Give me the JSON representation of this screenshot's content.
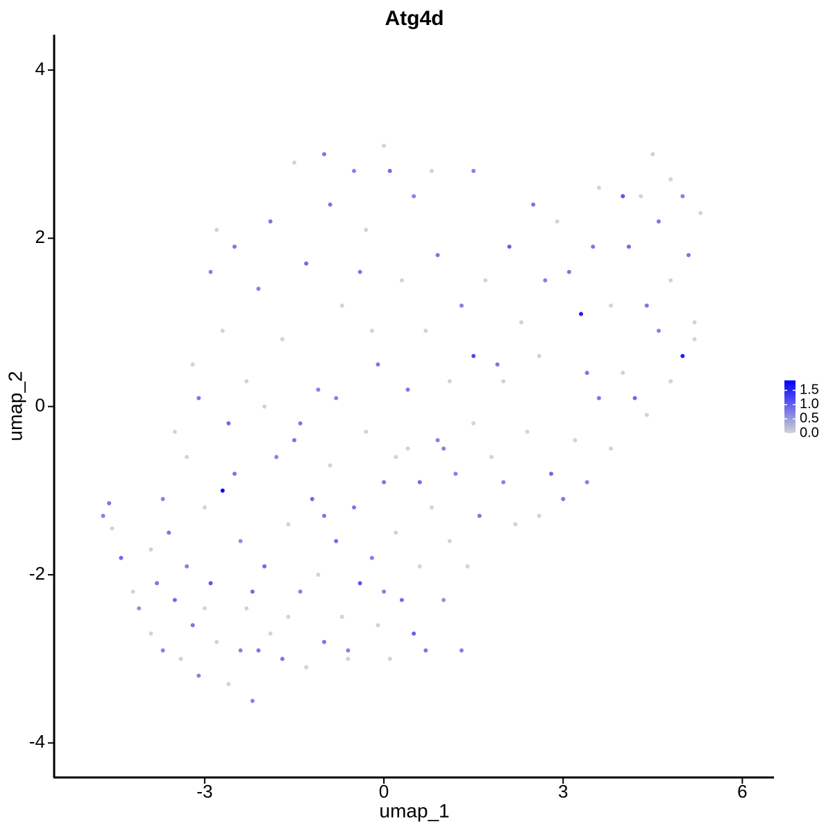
{
  "chart_data": {
    "type": "scatter",
    "title": "Atg4d",
    "x_label": "umap_1",
    "y_label": "umap_2",
    "xlim": [
      -5.52,
      6.53
    ],
    "ylim": [
      -4.41,
      4.42
    ],
    "xticks": [
      -3,
      0,
      3,
      6
    ],
    "yticks": [
      -4,
      -2,
      0,
      2,
      4
    ],
    "color_scale": {
      "low": "#d3d3d3",
      "high": "#0000ff",
      "lim": [
        0,
        1.85
      ],
      "ticks": [
        {
          "value": 0,
          "label": "0.0"
        },
        0.5,
        {
          "value": 1,
          "label": "1.0"
        },
        1.5
      ]
    },
    "x": [
      -4.7,
      -4.6,
      -4.55,
      -4.4,
      -4.2,
      -4.1,
      -3.9,
      -3.8,
      -3.7,
      -3.6,
      -3.5,
      -3.4,
      -3.3,
      -3.2,
      -3.1,
      -3.0,
      -2.9,
      -2.8,
      -2.7,
      -2.6,
      -2.5,
      -2.4,
      -2.3,
      -2.2,
      -2.1,
      -2.0,
      -1.9,
      -1.8,
      -1.7,
      -1.6,
      -1.5,
      -1.4,
      -1.3,
      -1.2,
      -1.1,
      -1.0,
      -0.9,
      -0.8,
      -0.7,
      -0.6,
      -0.5,
      -0.4,
      -0.3,
      -0.2,
      -0.1,
      0.0,
      0.1,
      0.2,
      0.3,
      0.4,
      0.5,
      0.6,
      0.7,
      0.8,
      0.9,
      1.0,
      1.1,
      1.2,
      1.4,
      1.5,
      1.6,
      1.8,
      2.0,
      2.2,
      2.4,
      2.6,
      2.8,
      3.0,
      3.2,
      3.4,
      3.6,
      3.8,
      4.0,
      4.2,
      4.4,
      4.6,
      4.8,
      5.0,
      5.2,
      5.1,
      5.3,
      5.0,
      4.8,
      4.6,
      4.5,
      4.3,
      4.1,
      4.0,
      3.8,
      3.6,
      3.5,
      3.3,
      3.1,
      2.9,
      2.7,
      2.5,
      2.3,
      2.1,
      1.9,
      1.7,
      1.5,
      1.3,
      1.1,
      0.9,
      0.7,
      0.5,
      0.3,
      0.1,
      -0.1,
      -0.3,
      -0.5,
      -0.7,
      -0.9,
      -1.1,
      -1.3,
      -1.5,
      -1.7,
      -1.9,
      -2.1,
      -2.3,
      -2.5,
      -2.7,
      -2.9,
      -3.1,
      -3.3,
      -3.5,
      -3.7,
      -3.9,
      -2.6,
      -2.0,
      -1.4,
      -0.8,
      -0.2,
      0.4,
      1.0,
      2.0,
      2.6,
      3.4,
      4.4,
      4.8,
      5.2,
      -0.6,
      0.0,
      -1.0,
      -2.2,
      -3.0,
      -2.4,
      -1.6,
      0.6,
      1.3,
      -3.2,
      -2.8,
      -1.0,
      0.0,
      0.8,
      1.5,
      -0.4,
      0.2
    ],
    "y": [
      -1.3,
      -1.15,
      -1.45,
      -1.8,
      -2.2,
      -2.4,
      -2.7,
      -2.1,
      -2.9,
      -1.5,
      -2.3,
      -3.0,
      -1.9,
      -2.6,
      -3.2,
      -1.2,
      -2.1,
      -2.8,
      -1.0,
      -3.3,
      -0.8,
      -1.6,
      -2.4,
      -3.5,
      -2.9,
      -1.9,
      -2.7,
      -0.6,
      -3.0,
      -1.4,
      -0.4,
      -2.2,
      -3.1,
      -1.1,
      -2.0,
      -2.8,
      -0.7,
      -1.6,
      -2.5,
      -2.9,
      -1.2,
      -2.1,
      -0.3,
      -1.8,
      -2.6,
      -0.9,
      -3.0,
      -1.5,
      -2.3,
      -0.5,
      -2.7,
      -1.9,
      -2.9,
      -1.2,
      -0.4,
      -2.3,
      -1.6,
      -0.8,
      -1.9,
      -0.2,
      -1.3,
      -0.6,
      -0.9,
      -1.4,
      -0.3,
      -1.3,
      -0.8,
      -1.1,
      -0.4,
      -0.9,
      0.1,
      -0.5,
      0.4,
      0.1,
      -0.1,
      0.9,
      0.3,
      0.6,
      1.0,
      1.8,
      2.3,
      2.5,
      2.7,
      2.2,
      3.0,
      2.5,
      1.9,
      2.5,
      1.2,
      2.6,
      1.9,
      1.1,
      1.6,
      2.2,
      1.5,
      2.4,
      1.0,
      1.9,
      0.5,
      1.5,
      0.6,
      1.2,
      0.3,
      1.8,
      0.9,
      2.5,
      1.5,
      2.8,
      0.5,
      2.1,
      2.8,
      1.2,
      2.4,
      0.2,
      1.7,
      2.9,
      0.8,
      2.2,
      1.4,
      0.3,
      1.9,
      0.9,
      1.6,
      0.1,
      -0.6,
      -0.3,
      -1.1,
      -1.7,
      -0.2,
      0.0,
      -0.2,
      0.1,
      0.9,
      0.2,
      -0.5,
      0.3,
      0.6,
      0.4,
      1.2,
      1.5,
      0.8,
      -3.0,
      -2.2,
      -1.3,
      -2.2,
      -2.4,
      -2.9,
      -2.5,
      -0.9,
      -2.9,
      0.5,
      2.1,
      3.0,
      3.1,
      2.8,
      2.8,
      1.6,
      -0.6
    ],
    "color_values": [
      0.7,
      0.8,
      0,
      0.9,
      0,
      0.6,
      0,
      0.8,
      0.7,
      0.8,
      0.9,
      0,
      0.7,
      0.8,
      0.7,
      0,
      1.1,
      0,
      1.8,
      0,
      0.8,
      0.6,
      0,
      0.7,
      0.8,
      0.9,
      0,
      0.7,
      0.8,
      0,
      0.8,
      0.7,
      0,
      0.9,
      0,
      0.8,
      0,
      0.9,
      0,
      0.7,
      0.8,
      1.1,
      0,
      0.7,
      0,
      0.8,
      0,
      0,
      0.9,
      0,
      1.0,
      0,
      0.8,
      0,
      0.7,
      0.6,
      0,
      0.7,
      0,
      0,
      0.8,
      0,
      0.7,
      0,
      0,
      0,
      0.9,
      0.8,
      0,
      0.7,
      0.8,
      0,
      0,
      0.9,
      0,
      0.7,
      0,
      1.6,
      0,
      0.8,
      0,
      0.7,
      0,
      0.8,
      0,
      0,
      0.9,
      1.1,
      0,
      0,
      0.8,
      1.6,
      0.8,
      0,
      0.7,
      0.8,
      0,
      1.0,
      0.8,
      0,
      1.2,
      0.7,
      0,
      0.8,
      0,
      0.7,
      0,
      0.9,
      0.8,
      0,
      0.7,
      0,
      0.8,
      0.7,
      0.9,
      0,
      0,
      0.8,
      0.7,
      0,
      0.8,
      0,
      0.7,
      0.8,
      0,
      0,
      0.7,
      0,
      0.9,
      0,
      0.8,
      0.7,
      0,
      0.8,
      0.7,
      0,
      0,
      0.8,
      0.8,
      0,
      0,
      0,
      0.7,
      0.8,
      0.9,
      0,
      0.7,
      0,
      0.9,
      0.7,
      0,
      0,
      0.8,
      0,
      0,
      0.7,
      0.8,
      0
    ]
  }
}
